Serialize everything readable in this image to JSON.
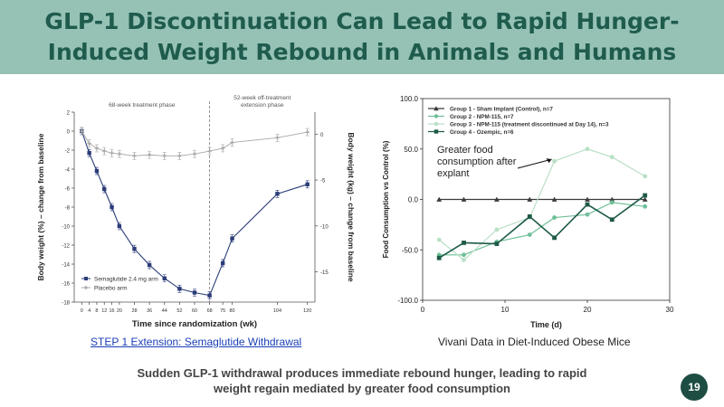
{
  "slide": {
    "title": "GLP-1 Discontinuation Can Lead to Rapid Hunger-Induced Weight Rebound in Animals and Humans",
    "link_caption": "STEP 1 Extension: Semaglutide Withdrawal",
    "right_caption": "Vivani Data in Diet-Induced Obese Mice",
    "bottom_text": "Sudden GLP-1 withdrawal produces immediate rebound hunger, leading to rapid weight regain mediated by greater food consumption",
    "page_number": "19",
    "accent_color": "#96c2b6",
    "title_color": "#1f5c4d"
  },
  "chart_data": [
    {
      "type": "line",
      "phase_labels": [
        "68-week treatment phase",
        "52-week off-treatment extension phase"
      ],
      "xlabel": "Time since randomization (wk)",
      "ylabel_left": "Body weight (%) – change from baseline",
      "ylabel_right": "Body weight (kg) – change from baseline",
      "x_ticks": [
        0,
        4,
        8,
        12,
        16,
        20,
        28,
        36,
        44,
        52,
        60,
        68,
        75,
        80,
        104,
        120
      ],
      "y_ticks_left": [
        2,
        0,
        -2,
        -4,
        -6,
        -8,
        -10,
        -12,
        -14,
        -16,
        -18
      ],
      "y_ticks_right": [
        0,
        -5,
        -10,
        -15
      ],
      "ylim": [
        -18,
        2
      ],
      "right_axis_ylim": [
        -18.3,
        2.4
      ],
      "divider_week": 68,
      "grid": false,
      "legend_position": "bottom-left",
      "series": [
        {
          "name": "Semaglutide 2.4 mg arm",
          "color": "#2b3c78",
          "marker": "square",
          "x": [
            0,
            4,
            8,
            12,
            16,
            20,
            28,
            36,
            44,
            52,
            60,
            68,
            75,
            80,
            104,
            120
          ],
          "y": [
            0,
            -2.3,
            -4.2,
            -6.1,
            -8.0,
            -10.0,
            -12.4,
            -14.1,
            -15.5,
            -16.6,
            -17.0,
            -17.3,
            -13.9,
            -11.3,
            -6.6,
            -5.6
          ]
        },
        {
          "name": "Placebo arm",
          "color": "#a8a8a8",
          "marker": "cross",
          "x": [
            0,
            4,
            8,
            12,
            16,
            20,
            28,
            36,
            44,
            52,
            60,
            68,
            75,
            80,
            104,
            120
          ],
          "y": [
            0,
            -1.3,
            -1.8,
            -2.1,
            -2.3,
            -2.4,
            -2.6,
            -2.5,
            -2.6,
            -2.6,
            -2.4,
            -2.1,
            -1.8,
            -1.2,
            -0.7,
            -0.1
          ]
        }
      ]
    },
    {
      "type": "line",
      "xlabel": "Time (d)",
      "ylabel": "Food Consumption vs Control (%)",
      "xlim": [
        0,
        30
      ],
      "ylim": [
        -100,
        100
      ],
      "x_ticks": [
        0,
        10,
        20,
        30
      ],
      "y_ticks": [
        "100.0",
        "50.0",
        "0.0",
        "-50.0",
        "-100.0"
      ],
      "grid": false,
      "legend_position": "top-left",
      "annotation": "Greater food consumption after explant",
      "annotation_target": {
        "x": 16,
        "y": 38
      },
      "series": [
        {
          "name": "Group 1 - Sham Implant (Control), n=7",
          "color": "#3a3a3a",
          "marker": "triangle",
          "x": [
            2,
            5,
            9,
            13,
            16,
            20,
            23,
            27
          ],
          "y": [
            0,
            0,
            0,
            0,
            0,
            0,
            0,
            0
          ]
        },
        {
          "name": "Group 2 - NPM-115, n=7",
          "color": "#6fbf98",
          "marker": "circle",
          "x": [
            2,
            5,
            9,
            13,
            16,
            20,
            23,
            27
          ],
          "y": [
            -55,
            -55,
            -42,
            -35,
            -18,
            -15,
            -3,
            -7
          ]
        },
        {
          "name": "Group 3 - NPM-115 (treatment discontinued at Day 14), n=3",
          "color": "#b9e0c6",
          "marker": "circle",
          "x": [
            2,
            5,
            9,
            13,
            16,
            20,
            23,
            27
          ],
          "y": [
            -40,
            -60,
            -30,
            -18,
            38,
            50,
            42,
            23
          ]
        },
        {
          "name": "Group 4 - Ozempic, n=6",
          "color": "#1e5a48",
          "marker": "square",
          "x": [
            2,
            5,
            9,
            13,
            16,
            20,
            23,
            27
          ],
          "y": [
            -58,
            -43,
            -44,
            -17,
            -38,
            -5,
            -20,
            4
          ]
        }
      ]
    }
  ]
}
